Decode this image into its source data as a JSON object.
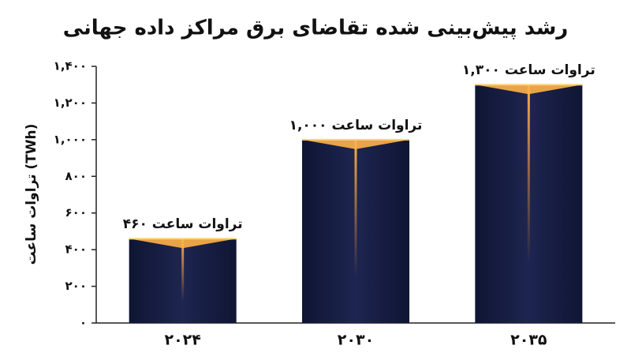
{
  "chart_data": {
    "type": "bar",
    "title": "رشد پیش‌بینی شده تقاضای برق مراکز داده جهانی",
    "y_label": "تراوات ساعت (TWh)",
    "categories": [
      "۲۰۲۴",
      "۲۰۳۰",
      "۲۰۳۵"
    ],
    "values": [
      460,
      1000,
      1300
    ],
    "value_labels": [
      "۴۶۰ تراوات ساعت",
      "۱,۰۰۰ تراوات ساعت",
      "۱,۳۰۰ تراوات ساعت"
    ],
    "color": "#141a3d",
    "ylim": [
      0,
      1400
    ],
    "yticks": [
      {
        "value": 0,
        "label": "۰"
      },
      {
        "value": 200,
        "label": "۲۰۰"
      },
      {
        "value": 400,
        "label": "۴۰۰"
      },
      {
        "value": 600,
        "label": "۶۰۰"
      },
      {
        "value": 800,
        "label": "۸۰۰"
      },
      {
        "value": 1000,
        "label": "۱,۰۰۰"
      },
      {
        "value": 1200,
        "label": "۱,۲۰۰"
      },
      {
        "value": 1400,
        "label": "۱,۴۰۰"
      }
    ]
  }
}
